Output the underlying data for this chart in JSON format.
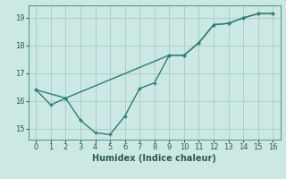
{
  "xlabel": "Humidex (Indice chaleur)",
  "background_color": "#cce8e4",
  "grid_color": "#aad0ca",
  "line_color": "#2e7d6e",
  "xlim": [
    -0.5,
    16.5
  ],
  "ylim": [
    14.6,
    19.45
  ],
  "xticks": [
    0,
    1,
    2,
    3,
    4,
    5,
    6,
    7,
    8,
    9,
    10,
    11,
    12,
    13,
    14,
    15,
    16
  ],
  "yticks": [
    15,
    16,
    17,
    18,
    19
  ],
  "line1_x": [
    0,
    1,
    2,
    3,
    4,
    5,
    6,
    7,
    8,
    9,
    10,
    11,
    12,
    13,
    14,
    15,
    16
  ],
  "line1_y": [
    16.4,
    15.85,
    16.1,
    15.3,
    14.85,
    14.78,
    15.45,
    16.45,
    16.65,
    17.65,
    17.65,
    18.1,
    18.75,
    18.8,
    19.0,
    19.15,
    19.15
  ],
  "line2_x": [
    0,
    2,
    9,
    10,
    11,
    12,
    13,
    14,
    15,
    16
  ],
  "line2_y": [
    16.4,
    16.1,
    17.65,
    17.65,
    18.1,
    18.75,
    18.8,
    19.0,
    19.15,
    19.15
  ]
}
